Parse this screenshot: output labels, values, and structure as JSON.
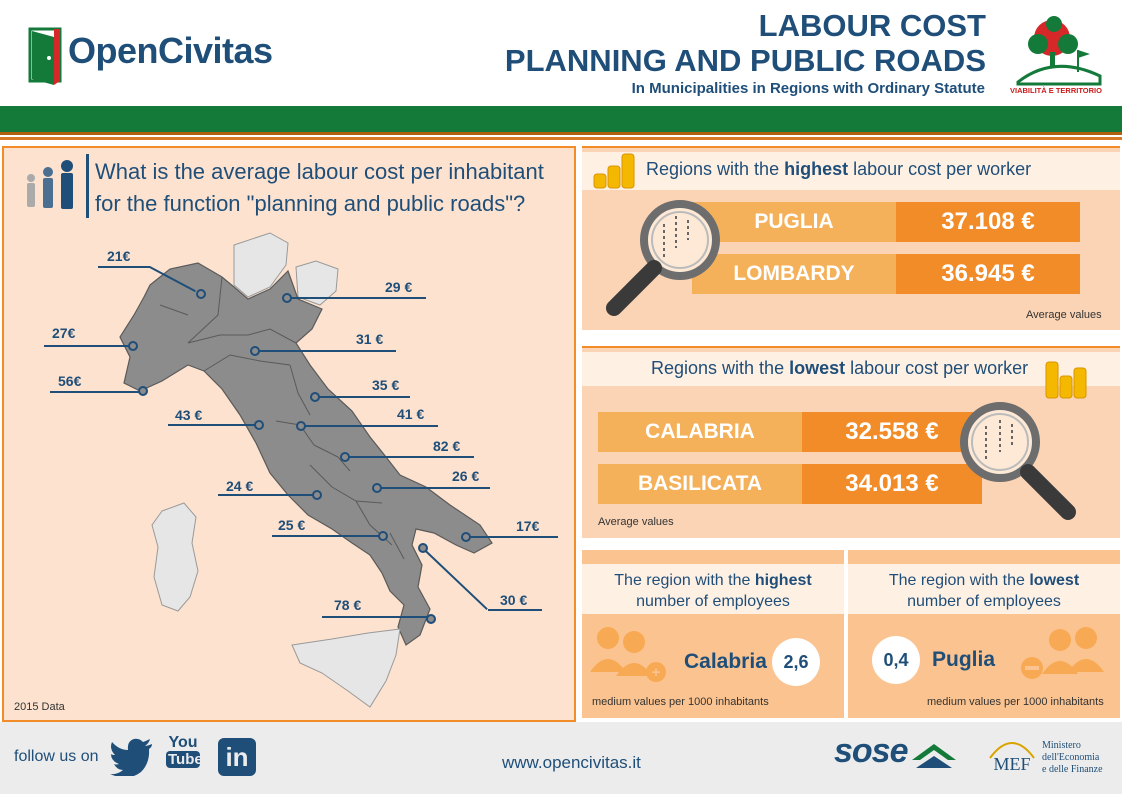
{
  "header": {
    "brand": "OpenCivitas",
    "title_line1": "LABOUR COST",
    "title_line2": "PLANNING AND PUBLIC ROADS",
    "subtitle": "In Municipalities in Regions with Ordinary Statute",
    "badge_caption": "VIABILITÀ E TERRITORIO"
  },
  "map_panel": {
    "question_line1": "What is the average labour cost per inhabitant",
    "question_line2": "for the function \"planning and public roads\"?",
    "footnote": "2015 Data",
    "labels": [
      "21€",
      "29 €",
      "27€",
      "31 €",
      "56€",
      "35 €",
      "43 €",
      "41 €",
      "82 €",
      "24 €",
      "26 €",
      "25 €",
      "17€",
      "30 €",
      "78 €"
    ]
  },
  "highest_cost": {
    "title_pre": "Regions with the ",
    "title_bold": "highest",
    "title_post": " labour cost per worker",
    "rows": [
      {
        "region": "PUGLIA",
        "value": "37.108 €"
      },
      {
        "region": "LOMBARDY",
        "value": "36.945 €"
      }
    ],
    "note": "Average values"
  },
  "lowest_cost": {
    "title_pre": "Regions with the ",
    "title_bold": "lowest",
    "title_post": " labour cost per worker",
    "rows": [
      {
        "region": "CALABRIA",
        "value": "32.558 €"
      },
      {
        "region": "BASILICATA",
        "value": "34.013 €"
      }
    ],
    "note": "Average values"
  },
  "employees_high": {
    "line1_pre": "The region with the ",
    "line1_bold": "highest",
    "line2": "number of employees",
    "region": "Calabria",
    "value": "2,6",
    "note": "medium values per 1000 inhabitants"
  },
  "employees_low": {
    "line1_pre": "The region with the ",
    "line1_bold": "lowest",
    "line2": "number of employees",
    "region": "Puglia",
    "value": "0,4",
    "note": "medium values per 1000 inhabitants"
  },
  "footer": {
    "follow_text": "follow us on",
    "youtube_line1": "You",
    "youtube_line2": "Tube",
    "linkedin_text": "in",
    "website": "www.opencivitas.it",
    "sose_text": "sose",
    "mef_abbr": "MEF",
    "mef_line1": "Ministero",
    "mef_line2": "dell'Economia",
    "mef_line3": "e delle Finanze"
  },
  "colors": {
    "navy": "#1f4e79",
    "green": "#137a3a",
    "orange": "#f28c28",
    "light_orange": "#f5a74f",
    "panel_bg": "#fde3cf"
  },
  "icons": [
    "door-logo-icon",
    "tree-badge-icon",
    "people-icon",
    "coins-icon",
    "magnifier-icon",
    "employees-plus-icon",
    "employees-minus-icon",
    "twitter-icon",
    "youtube-icon",
    "linkedin-icon",
    "sose-logo-icon",
    "mef-logo-icon"
  ]
}
